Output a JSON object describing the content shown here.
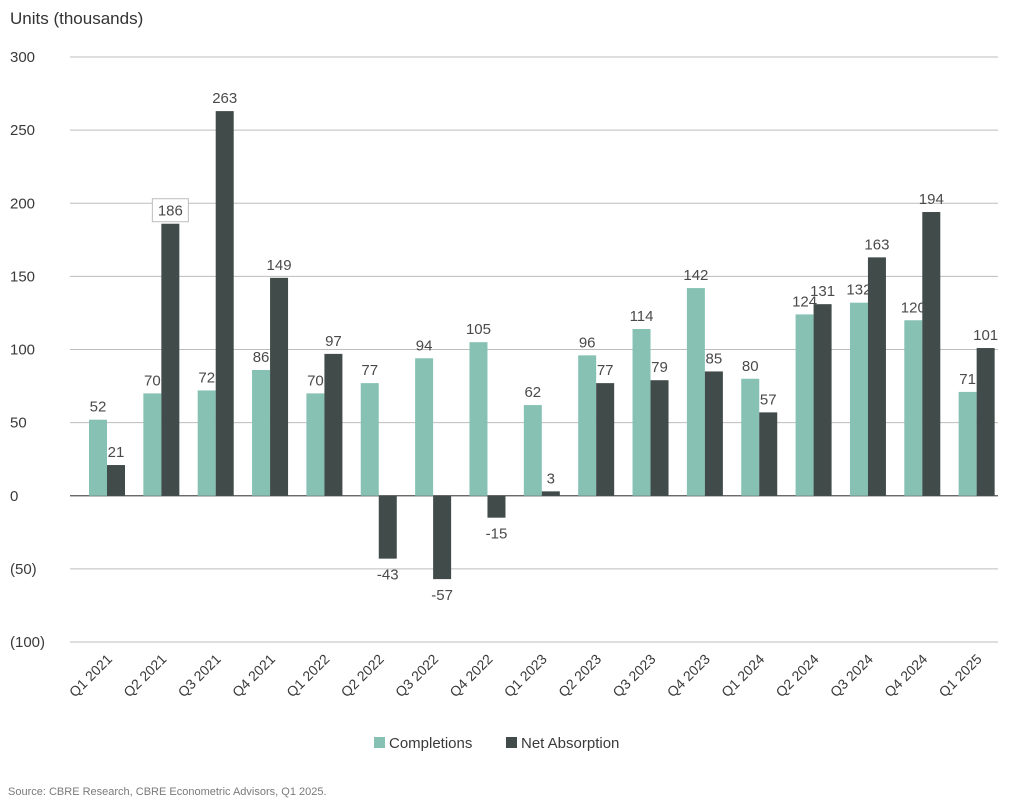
{
  "chart_data": {
    "type": "bar",
    "ylabel": "Units (thousands)",
    "ylim": [
      -100,
      300
    ],
    "yticks": [
      300,
      250,
      200,
      150,
      100,
      50,
      0,
      -50,
      -100
    ],
    "ytick_labels": [
      "300",
      "250",
      "200",
      "150",
      "100",
      "50",
      "0",
      "(50)",
      "(100)"
    ],
    "categories": [
      "Q1 2021",
      "Q2 2021",
      "Q3 2021",
      "Q4 2021",
      "Q1 2022",
      "Q2 2022",
      "Q3 2022",
      "Q4 2022",
      "Q1 2023",
      "Q2 2023",
      "Q3 2023",
      "Q4 2023",
      "Q1 2024",
      "Q2 2024",
      "Q3 2024",
      "Q4 2024",
      "Q1 2025"
    ],
    "series": [
      {
        "name": "Completions",
        "color": "#86c1b3",
        "values": [
          52,
          70,
          72,
          86,
          70,
          77,
          94,
          105,
          62,
          96,
          114,
          142,
          80,
          124,
          132,
          120,
          71
        ]
      },
      {
        "name": "Net Absorption",
        "color": "#404b4a",
        "values": [
          21,
          186,
          263,
          149,
          97,
          -43,
          -57,
          -15,
          3,
          77,
          79,
          85,
          57,
          131,
          163,
          194,
          101
        ]
      }
    ],
    "highlighted_label": {
      "series": "Net Absorption",
      "category": "Q2 2021"
    },
    "grid": true,
    "legend_position": "bottom-center"
  },
  "footer": {
    "source": "Source: CBRE Research, CBRE Econometric Advisors, Q1 2025."
  }
}
